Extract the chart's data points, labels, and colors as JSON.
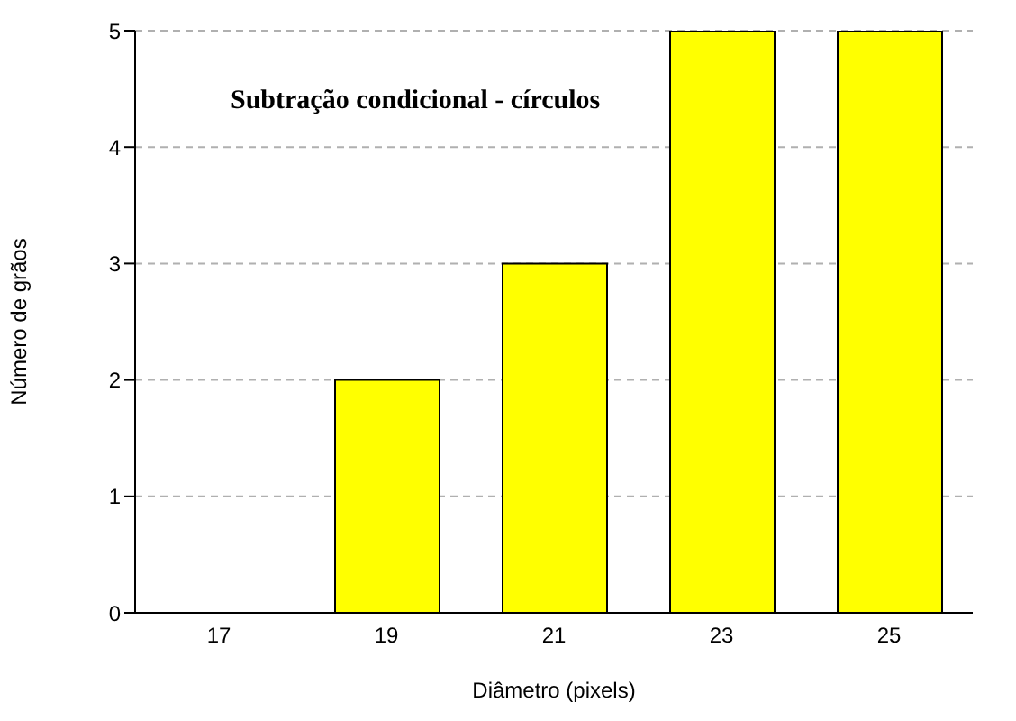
{
  "chart_data": {
    "type": "bar",
    "title": "Subtração condicional - círculos",
    "xlabel": "Diâmetro (pixels)",
    "ylabel": "Número de grãos",
    "categories": [
      "17",
      "19",
      "21",
      "23",
      "25"
    ],
    "values": [
      0,
      2,
      3,
      5,
      5
    ],
    "color": "#ffff00",
    "ylim": [
      0,
      5
    ],
    "yticks": [
      0,
      1,
      2,
      3,
      4,
      5
    ],
    "grid": "y"
  }
}
